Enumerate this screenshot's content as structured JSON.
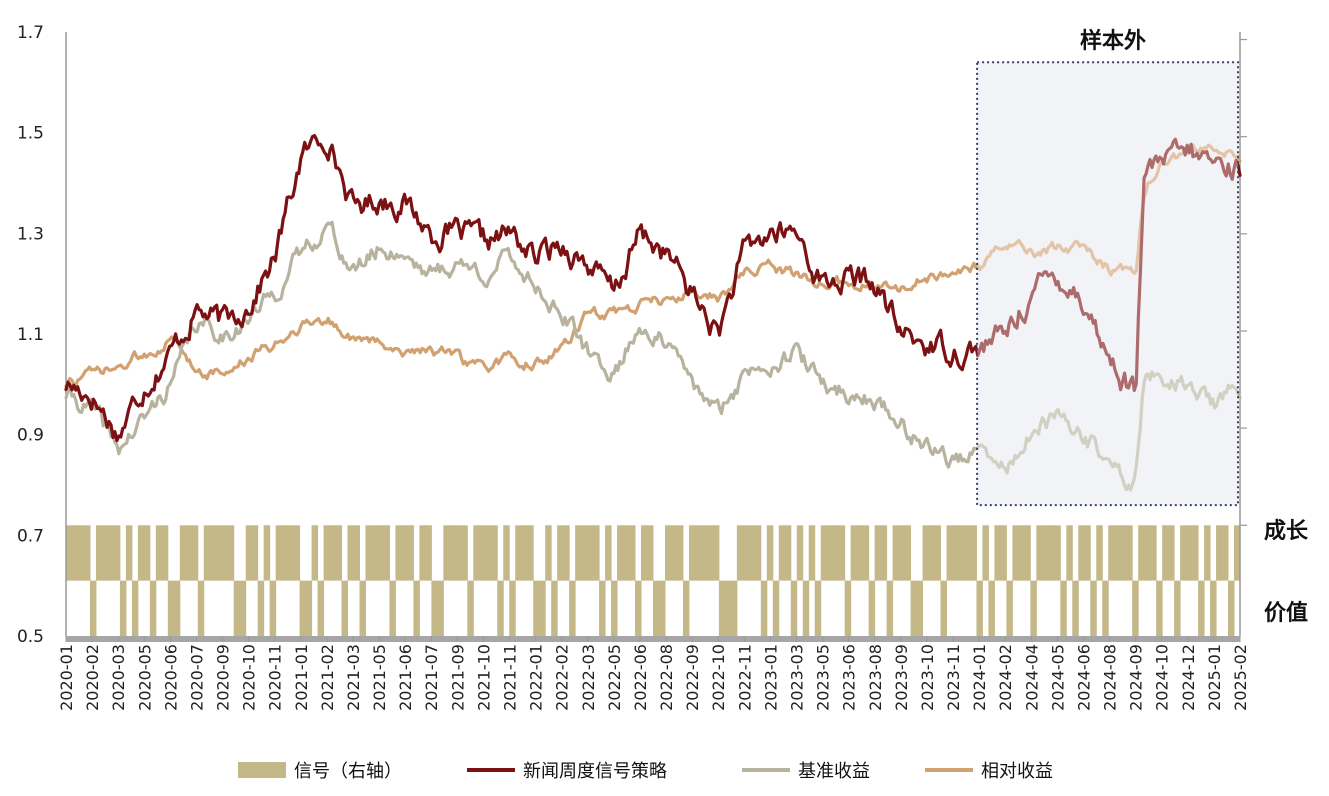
{
  "chart_data": {
    "type": "line",
    "title": "",
    "xlabel": "",
    "ylabel": "",
    "ylim": [
      0.5,
      1.7
    ],
    "yticks": [
      "0.5",
      "0.7",
      "0.9",
      "1.1",
      "1.3",
      "1.5",
      "1.7"
    ],
    "x_tick_labels": [
      "2020-01",
      "2020-02",
      "2020-03",
      "2020-05",
      "2020-06",
      "2020-07",
      "2020-09",
      "2020-10",
      "2020-11",
      "2021-01",
      "2021-02",
      "2021-03",
      "2021-05",
      "2021-06",
      "2021-07",
      "2021-09",
      "2021-10",
      "2021-11",
      "2022-01",
      "2022-02",
      "2022-03",
      "2022-05",
      "2022-06",
      "2022-08",
      "2022-09",
      "2022-10",
      "2022-11",
      "2023-01",
      "2023-03",
      "2023-05",
      "2023-06",
      "2023-08",
      "2023-09",
      "2023-10",
      "2023-11",
      "2024-01",
      "2024-02",
      "2024-04",
      "2024-05",
      "2024-06",
      "2024-08",
      "2024-09",
      "2024-10",
      "2024-12",
      "2025-01",
      "2025-02"
    ],
    "out_of_sample": {
      "label": "样本外",
      "start": "2024-01"
    },
    "signal_axis": {
      "top_label": "成长",
      "bottom_label": "价值"
    },
    "series": [
      {
        "name": "新闻周度信号策略",
        "color": "#7b1113",
        "anchors": [
          [
            0,
            1.0
          ],
          [
            1,
            0.98
          ],
          [
            2,
            0.9
          ],
          [
            3,
            1.0
          ],
          [
            4,
            1.06
          ],
          [
            5,
            1.15
          ],
          [
            6,
            1.12
          ],
          [
            7,
            1.16
          ],
          [
            8,
            1.25
          ],
          [
            9,
            1.45
          ],
          [
            10,
            1.5
          ],
          [
            11,
            1.35
          ],
          [
            12,
            1.37
          ],
          [
            13,
            1.36
          ],
          [
            14,
            1.3
          ],
          [
            15,
            1.3
          ],
          [
            16,
            1.28
          ],
          [
            17,
            1.3
          ],
          [
            18,
            1.25
          ],
          [
            19,
            1.28
          ],
          [
            20,
            1.24
          ],
          [
            21,
            1.18
          ],
          [
            22,
            1.3
          ],
          [
            23,
            1.26
          ],
          [
            24,
            1.18
          ],
          [
            25,
            1.1
          ],
          [
            26,
            1.26
          ],
          [
            27,
            1.3
          ],
          [
            28,
            1.3
          ],
          [
            29,
            1.2
          ],
          [
            30,
            1.21
          ],
          [
            31,
            1.2
          ],
          [
            32,
            1.1
          ],
          [
            33,
            1.08
          ],
          [
            34,
            1.07
          ],
          [
            35,
            1.07
          ],
          [
            36,
            1.1
          ],
          [
            37,
            1.18
          ],
          [
            38,
            1.22
          ],
          [
            39,
            1.17
          ],
          [
            40,
            1.05
          ],
          [
            41,
            0.98
          ],
          [
            41.3,
            1.4
          ],
          [
            42,
            1.44
          ],
          [
            43,
            1.46
          ],
          [
            44,
            1.44
          ],
          [
            45,
            1.43
          ]
        ]
      },
      {
        "name": "基准收益",
        "color": "#b7b39f",
        "anchors": [
          [
            0,
            0.98
          ],
          [
            1,
            0.95
          ],
          [
            2,
            0.87
          ],
          [
            3,
            0.93
          ],
          [
            4,
            1.0
          ],
          [
            5,
            1.12
          ],
          [
            6,
            1.1
          ],
          [
            7,
            1.13
          ],
          [
            8,
            1.18
          ],
          [
            9,
            1.26
          ],
          [
            10,
            1.32
          ],
          [
            11,
            1.22
          ],
          [
            12,
            1.27
          ],
          [
            13,
            1.26
          ],
          [
            14,
            1.22
          ],
          [
            15,
            1.24
          ],
          [
            16,
            1.22
          ],
          [
            17,
            1.25
          ],
          [
            18,
            1.2
          ],
          [
            19,
            1.14
          ],
          [
            20,
            1.06
          ],
          [
            21,
            1.02
          ],
          [
            22,
            1.12
          ],
          [
            23,
            1.08
          ],
          [
            24,
            1.0
          ],
          [
            25,
            0.94
          ],
          [
            26,
            1.02
          ],
          [
            27,
            1.05
          ],
          [
            28,
            1.06
          ],
          [
            29,
            1.0
          ],
          [
            30,
            0.98
          ],
          [
            31,
            0.97
          ],
          [
            32,
            0.92
          ],
          [
            33,
            0.88
          ],
          [
            34,
            0.85
          ],
          [
            35,
            0.86
          ],
          [
            36,
            0.83
          ],
          [
            37,
            0.9
          ],
          [
            38,
            0.93
          ],
          [
            39,
            0.9
          ],
          [
            40,
            0.84
          ],
          [
            41,
            0.8
          ],
          [
            41.3,
            1.0
          ],
          [
            42,
            1.02
          ],
          [
            43,
            1.0
          ],
          [
            44,
            0.96
          ],
          [
            45,
            0.99
          ]
        ]
      },
      {
        "name": "相对收益",
        "color": "#d2a171",
        "anchors": [
          [
            0,
            1.0
          ],
          [
            1,
            1.02
          ],
          [
            2,
            1.03
          ],
          [
            3,
            1.06
          ],
          [
            4,
            1.09
          ],
          [
            5,
            1.03
          ],
          [
            6,
            1.02
          ],
          [
            7,
            1.05
          ],
          [
            8,
            1.08
          ],
          [
            9,
            1.12
          ],
          [
            10,
            1.13
          ],
          [
            11,
            1.09
          ],
          [
            12,
            1.08
          ],
          [
            13,
            1.07
          ],
          [
            14,
            1.07
          ],
          [
            15,
            1.05
          ],
          [
            16,
            1.03
          ],
          [
            17,
            1.05
          ],
          [
            18,
            1.04
          ],
          [
            19,
            1.07
          ],
          [
            20,
            1.14
          ],
          [
            21,
            1.14
          ],
          [
            22,
            1.16
          ],
          [
            23,
            1.17
          ],
          [
            24,
            1.18
          ],
          [
            25,
            1.17
          ],
          [
            26,
            1.22
          ],
          [
            27,
            1.23
          ],
          [
            28,
            1.22
          ],
          [
            29,
            1.2
          ],
          [
            30,
            1.2
          ],
          [
            31,
            1.2
          ],
          [
            32,
            1.19
          ],
          [
            33,
            1.21
          ],
          [
            34,
            1.22
          ],
          [
            35,
            1.23
          ],
          [
            36,
            1.28
          ],
          [
            37,
            1.26
          ],
          [
            38,
            1.27
          ],
          [
            39,
            1.27
          ],
          [
            40,
            1.23
          ],
          [
            41,
            1.22
          ],
          [
            41.3,
            1.38
          ],
          [
            42,
            1.44
          ],
          [
            43,
            1.46
          ],
          [
            44,
            1.47
          ],
          [
            45,
            1.45
          ]
        ]
      }
    ],
    "signal": {
      "name": "信号（右轴）",
      "color": "#c4b889",
      "growth_pattern": "1111011110101101100111011111001101011110010111011011110111011001111011110101110010110111101011101100111011111000111101011010101111011101101110011101111101011011101111010110101111011101101110101101"
    }
  },
  "legend": [
    {
      "name": "信号（右轴）",
      "kind": "bar",
      "color": "#c4b889"
    },
    {
      "name": "新闻周度信号策略",
      "kind": "line",
      "color": "#7b1113"
    },
    {
      "name": "基准收益",
      "kind": "line",
      "color": "#b7b39f"
    },
    {
      "name": "相对收益",
      "kind": "line",
      "color": "#d2a171"
    }
  ]
}
